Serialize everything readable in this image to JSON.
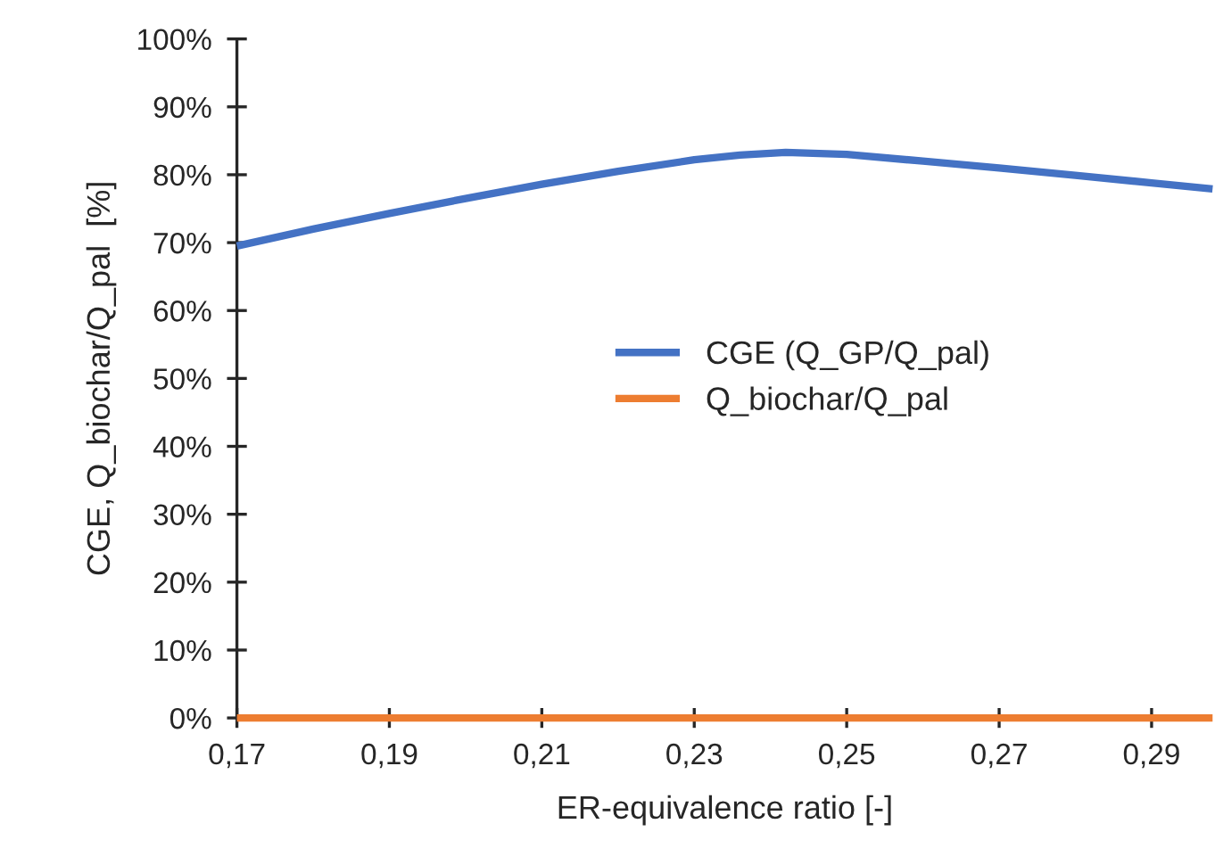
{
  "chart_data": {
    "type": "line",
    "xlabel": "ER-equivalence ratio [-]",
    "ylabel": "CGE, Q_biochar/Q_pal  [%]",
    "series": [
      {
        "name": "CGE (Q_GP/Q_pal)",
        "color": "#4472c4",
        "x": [
          0.17,
          0.18,
          0.19,
          0.2,
          0.21,
          0.22,
          0.23,
          0.236,
          0.242,
          0.25,
          0.26,
          0.27,
          0.28,
          0.29,
          0.298
        ],
        "values": [
          69.5,
          72.0,
          74.3,
          76.5,
          78.6,
          80.5,
          82.2,
          82.9,
          83.3,
          83.0,
          82.0,
          81.0,
          79.9,
          78.8,
          77.9
        ]
      },
      {
        "name": "Q_biochar/Q_pal",
        "color": "#ed7d31",
        "x": [
          0.17,
          0.298
        ],
        "values": [
          0,
          0
        ]
      }
    ],
    "xlim": [
      0.17,
      0.298
    ],
    "xticks": [
      {
        "value": 0.17,
        "label": "0,17"
      },
      {
        "value": 0.19,
        "label": "0,19"
      },
      {
        "value": 0.21,
        "label": "0,21"
      },
      {
        "value": 0.23,
        "label": "0,23"
      },
      {
        "value": 0.25,
        "label": "0,25"
      },
      {
        "value": 0.27,
        "label": "0,27"
      },
      {
        "value": 0.29,
        "label": "0,29"
      }
    ],
    "ylim": [
      0,
      100
    ],
    "yticks": [
      {
        "value": 0,
        "label": "0%"
      },
      {
        "value": 10,
        "label": "10%"
      },
      {
        "value": 20,
        "label": "20%"
      },
      {
        "value": 30,
        "label": "30%"
      },
      {
        "value": 40,
        "label": "40%"
      },
      {
        "value": 50,
        "label": "50%"
      },
      {
        "value": 60,
        "label": "60%"
      },
      {
        "value": 70,
        "label": "70%"
      },
      {
        "value": 80,
        "label": "80%"
      },
      {
        "value": 90,
        "label": "90%"
      },
      {
        "value": 100,
        "label": "100%"
      }
    ],
    "legend": "center"
  }
}
